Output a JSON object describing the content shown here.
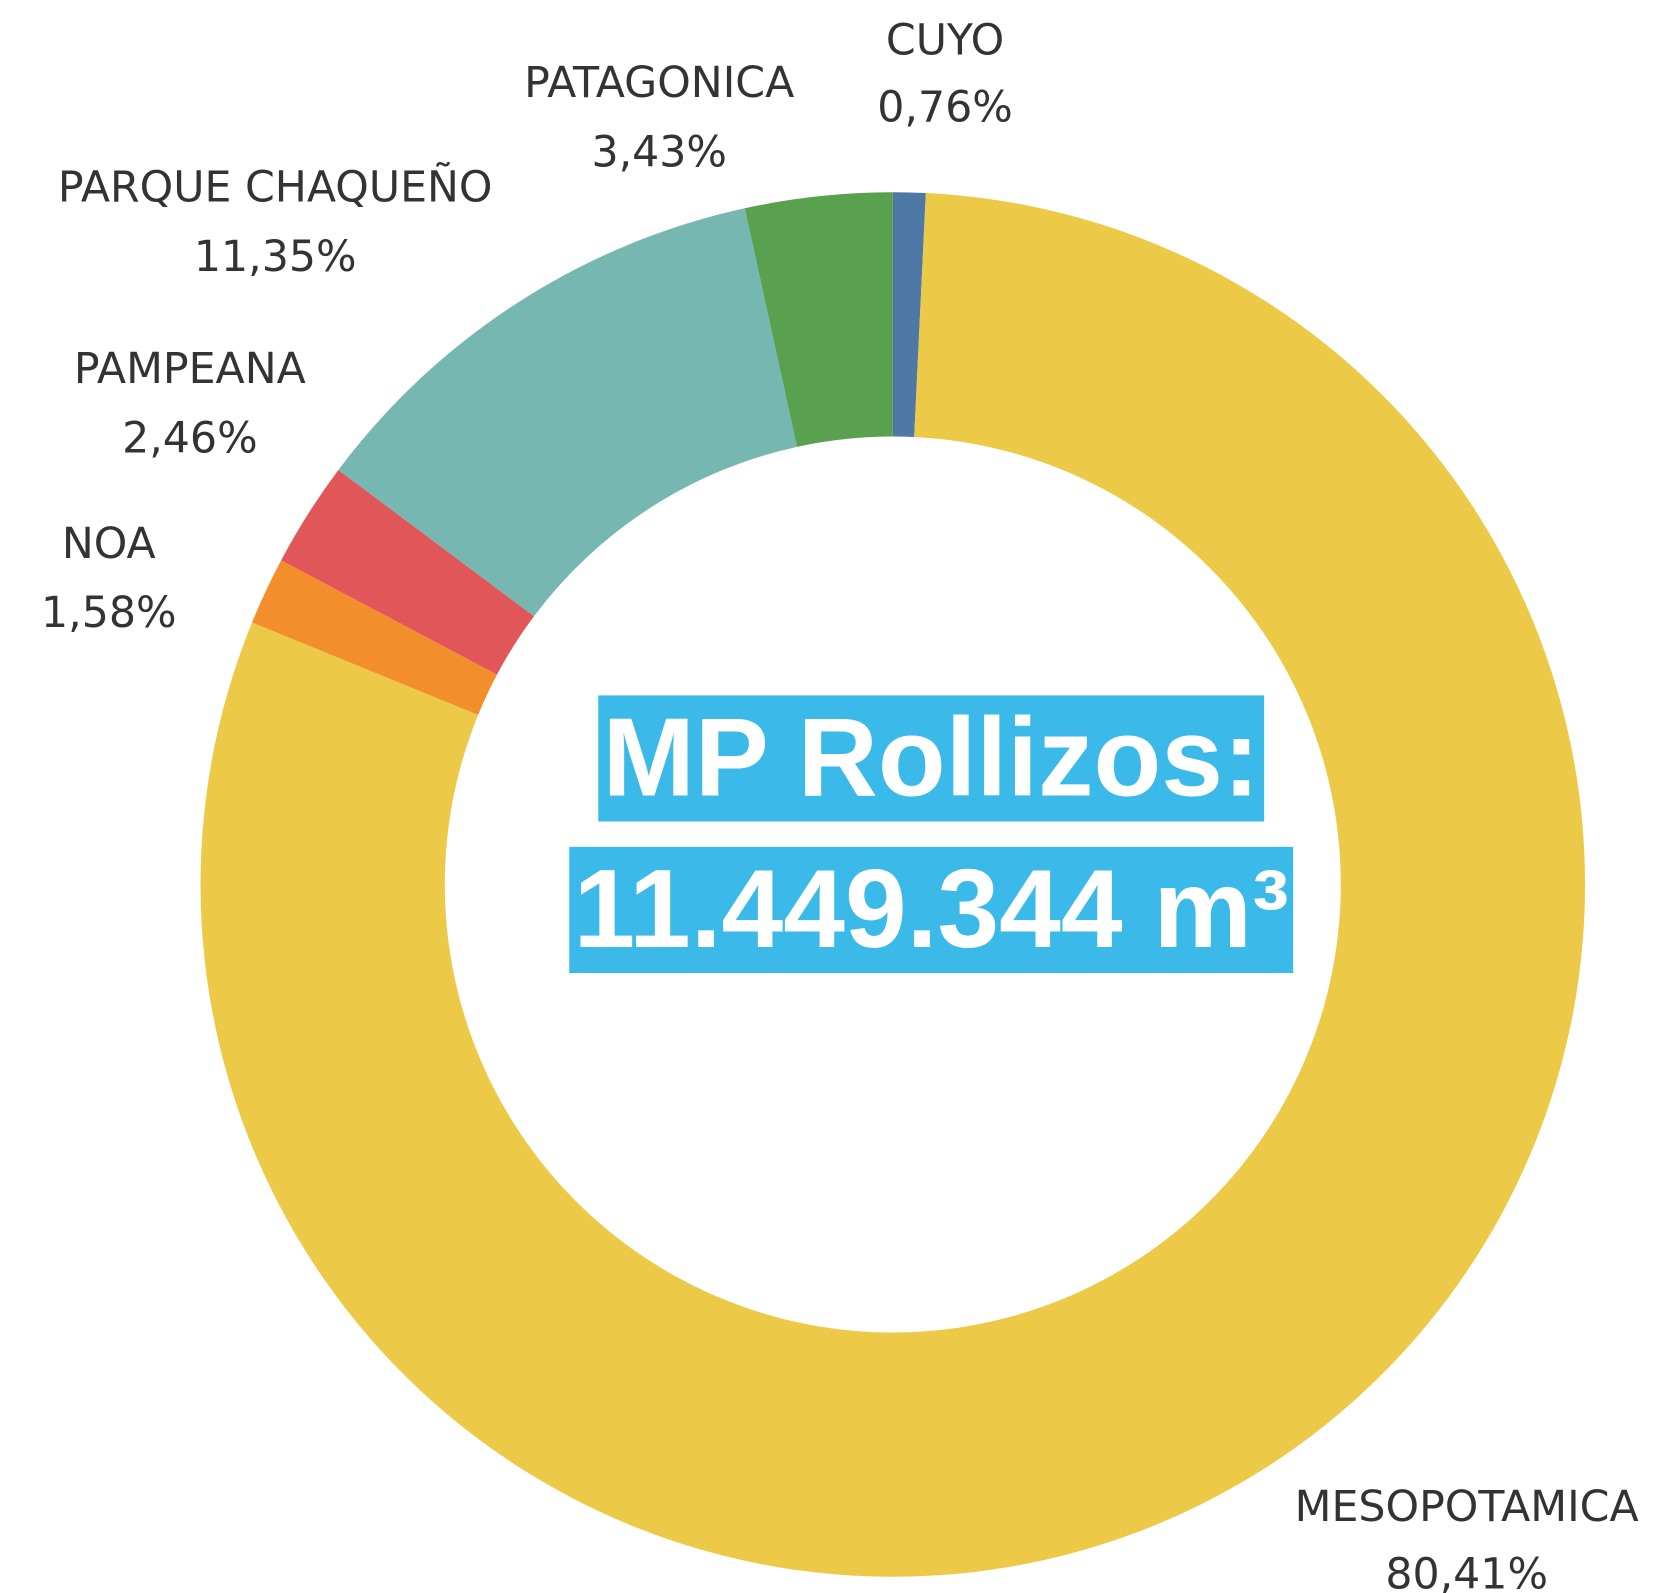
{
  "chart_data": {
    "type": "donut",
    "categories": [
      "CUYO",
      "MESOPOTAMICA",
      "NOA",
      "PAMPEANA",
      "PARQUE CHAQUEÑO",
      "PATAGONICA"
    ],
    "values": [
      0.76,
      80.41,
      1.58,
      2.46,
      11.35,
      3.43
    ],
    "value_labels": [
      "0,76%",
      "80,41%",
      "1,58%",
      "2,46%",
      "11,35%",
      "3,43%"
    ],
    "colors": [
      "#4e79a7",
      "#edc948",
      "#f28e2b",
      "#e15759",
      "#76b7b2",
      "#59a14f"
    ],
    "annotation": [
      "MP Rollizos:",
      "11.449.344 m³"
    ]
  }
}
